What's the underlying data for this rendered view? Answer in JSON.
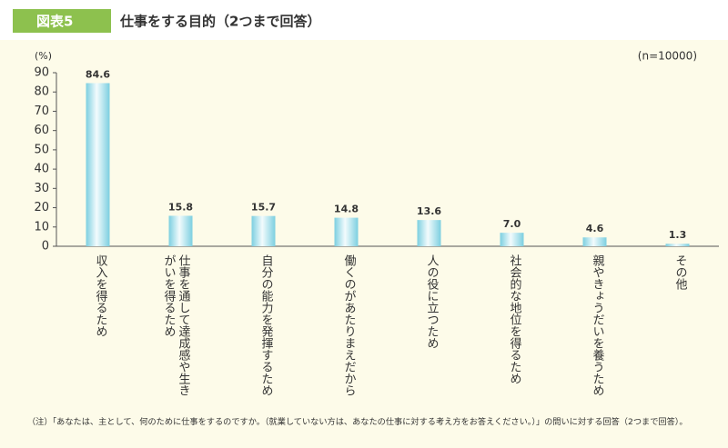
{
  "chart_data": {
    "type": "bar",
    "figure_label": "図表5",
    "title": "仕事をする目的（2つまで回答）",
    "y_unit": "(%)",
    "sample_note": "(n=10000)",
    "categories": [
      "収入を得るため",
      "仕事を通して達成感や生きがいを得るため",
      "自分の能力を発揮するため",
      "働くのがあたりまえだから",
      "人の役に立つため",
      "社会的な地位を得るため",
      "親やきょうだいを養うため",
      "その他"
    ],
    "values": [
      84.6,
      15.8,
      15.7,
      14.8,
      13.6,
      7.0,
      4.6,
      1.3
    ],
    "value_labels": [
      "84.6",
      "15.8",
      "15.7",
      "14.8",
      "13.6",
      "7.0",
      "4.6",
      "1.3"
    ],
    "color": "#7ccfe0",
    "ylim": [
      0,
      90
    ],
    "yticks": [
      0,
      10,
      20,
      30,
      40,
      50,
      60,
      70,
      80,
      90
    ],
    "note": "（注）「あなたは、主として、何のために仕事をするのですか。（就業していない方は、あなたの仕事に対する考え方をお答えください。）」の問いに対する回答（2つまで回答）。"
  }
}
